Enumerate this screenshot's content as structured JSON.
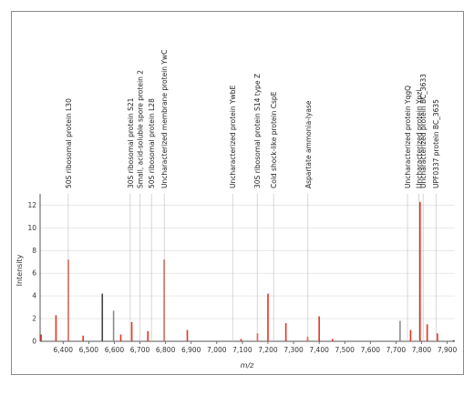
{
  "chart_data": {
    "type": "bar",
    "title": "",
    "xlabel": "m/z",
    "ylabel": "Intensity",
    "xlim": [
      6310,
      7930
    ],
    "ylim": [
      0,
      13
    ],
    "x_ticks": [
      "6,400",
      "6,500",
      "6,600",
      "6,700",
      "6,800",
      "6,900",
      "7,000",
      "7,100",
      "7,200",
      "7,300",
      "7,400",
      "7,500",
      "7,600",
      "7,700",
      "7,800",
      "7,900"
    ],
    "y_ticks": [
      "0",
      "2",
      "4",
      "6",
      "8",
      "10",
      "12"
    ],
    "colors": {
      "red": "#e8321e",
      "gray": "#8c8c8c",
      "dark": "#444444",
      "blue": "#1f3b8a"
    },
    "peaks": [
      {
        "x": 6314,
        "y": 0.6,
        "color": "red"
      },
      {
        "x": 6372,
        "y": 2.3,
        "color": "red"
      },
      {
        "x": 6420,
        "y": 7.2,
        "color": "red"
      },
      {
        "x": 6478,
        "y": 0.5,
        "color": "red"
      },
      {
        "x": 6553,
        "y": 4.2,
        "color": "dark"
      },
      {
        "x": 6597,
        "y": 2.7,
        "color": "gray"
      },
      {
        "x": 6625,
        "y": 0.6,
        "color": "red"
      },
      {
        "x": 6668,
        "y": 1.7,
        "color": "red"
      },
      {
        "x": 6731,
        "y": 0.9,
        "color": "red"
      },
      {
        "x": 6795,
        "y": 7.2,
        "color": "red"
      },
      {
        "x": 6885,
        "y": 1.0,
        "color": "red"
      },
      {
        "x": 7095,
        "y": 0.2,
        "color": "red"
      },
      {
        "x": 7159,
        "y": 0.7,
        "color": "red"
      },
      {
        "x": 7200,
        "y": 4.2,
        "color": "red"
      },
      {
        "x": 7270,
        "y": 1.6,
        "color": "red"
      },
      {
        "x": 7355,
        "y": 0.4,
        "color": "red"
      },
      {
        "x": 7400,
        "y": 2.2,
        "color": "red"
      },
      {
        "x": 7452,
        "y": 0.2,
        "color": "red"
      },
      {
        "x": 7716,
        "y": 1.8,
        "color": "gray"
      },
      {
        "x": 7757,
        "y": 1.0,
        "color": "red"
      },
      {
        "x": 7794,
        "y": 12.3,
        "color": "red"
      },
      {
        "x": 7822,
        "y": 1.5,
        "color": "red"
      },
      {
        "x": 7862,
        "y": 0.7,
        "color": "red"
      },
      {
        "x": 7925,
        "y": 0.1,
        "color": "blue"
      }
    ],
    "annotations": [
      {
        "x": 6420,
        "label": "50S ribosomal protein L30"
      },
      {
        "x": 6662,
        "label": "30S ribosomal protein S21"
      },
      {
        "x": 6700,
        "label": "Small, acid-soluble spore protein 2"
      },
      {
        "x": 6745,
        "label": "50S ribosomal protein L28"
      },
      {
        "x": 6795,
        "label": "Uncharacterized membrane protein YwC"
      },
      {
        "x": 7062,
        "label": "Uncharacterized protein YwbE"
      },
      {
        "x": 7158,
        "label": "30S ribosomal protein S14 type Z"
      },
      {
        "x": 7222,
        "label": "Cold shock-like protein CspE"
      },
      {
        "x": 7356,
        "label": "Aspartate ammonia-lyase"
      },
      {
        "x": 7745,
        "label": "Uncharacterized protein YqgQ"
      },
      {
        "x": 7790,
        "label": "Uncharacterized protein Ypzl"
      },
      {
        "x": 7806,
        "label": "Uncharacterized protein BC_3633"
      },
      {
        "x": 7856,
        "label": "UPF0337 protein BC_3635"
      }
    ]
  }
}
